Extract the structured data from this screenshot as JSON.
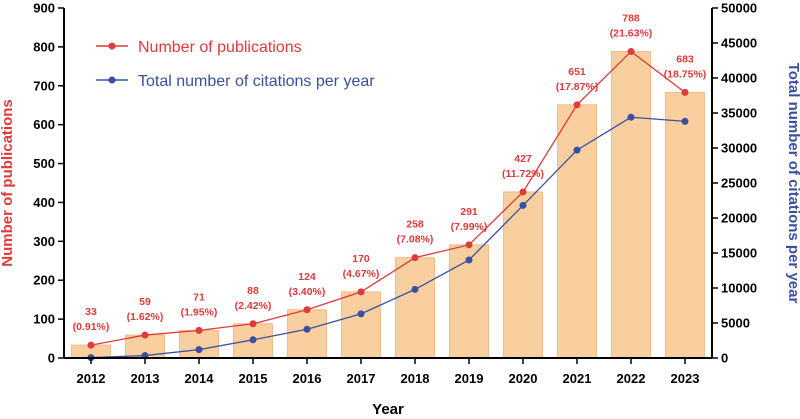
{
  "chart_data": {
    "type": "bar",
    "categories": [
      "2012",
      "2013",
      "2014",
      "2015",
      "2016",
      "2017",
      "2018",
      "2019",
      "2020",
      "2021",
      "2022",
      "2023"
    ],
    "series": [
      {
        "name": "Number of publications",
        "kind": "bar+line",
        "axis": "left",
        "values": [
          33,
          59,
          71,
          88,
          124,
          170,
          258,
          291,
          427,
          651,
          788,
          683
        ],
        "labels": [
          "33",
          "59",
          "71",
          "88",
          "124",
          "170",
          "258",
          "291",
          "427",
          "651",
          "788",
          "683"
        ],
        "percent_labels": [
          "(0.91%)",
          "(1.62%)",
          "(1.95%)",
          "(2.42%)",
          "(3.40%)",
          "(4.67%)",
          "(7.08%)",
          "(7.99%)",
          "(11.72%)",
          "(17.87%)",
          "(21.63%)",
          "(18.75%)"
        ]
      },
      {
        "name": "Total number of citations per year",
        "kind": "line",
        "axis": "right",
        "values": [
          50,
          350,
          1200,
          2600,
          4100,
          6300,
          9800,
          14000,
          21800,
          29700,
          34400,
          33800
        ]
      }
    ],
    "xlabel": "Year",
    "ylabel": "Number of publications",
    "y2label": "Total number of citations per year",
    "ylim": [
      0,
      900
    ],
    "y2lim": [
      0,
      50000
    ],
    "yticks": [
      0,
      100,
      200,
      300,
      400,
      500,
      600,
      700,
      800,
      900
    ],
    "y2ticks": [
      0,
      5000,
      10000,
      15000,
      20000,
      25000,
      30000,
      35000,
      40000,
      45000,
      50000
    ],
    "legend_position": "top-left",
    "grid": false,
    "colors": {
      "bar_fill": "#f9cf9f",
      "bar_stroke": "#f4b985",
      "publications_line": "#e03a3a",
      "citations_line": "#3a4fa0",
      "axis": "#000000"
    }
  }
}
